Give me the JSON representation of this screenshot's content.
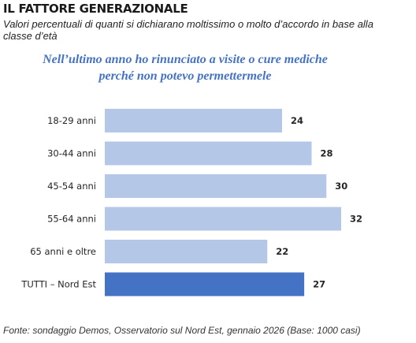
{
  "header": {
    "title": "IL FATTORE GENERAZIONALE",
    "subtitle": "Valori percentuali di quanti si dichiarano moltissimo o molto d’accordo in base alla classe d’età"
  },
  "chart_data": {
    "type": "bar",
    "orientation": "horizontal",
    "title_line1": "Nell’ultimo anno ho rinunciato a visite o cure mediche",
    "title_line2": "perché non potevo permettermele",
    "categories": [
      "18-29 anni",
      "30-44 anni",
      "45-54 anni",
      "55-64 anni",
      "65 anni e oltre",
      "TUTTI – Nord Est"
    ],
    "values": [
      24,
      28,
      30,
      32,
      22,
      27
    ],
    "value_labels": [
      "24",
      "28",
      "30",
      "32",
      "22",
      "27"
    ],
    "colors": [
      "#b4c7e7",
      "#b4c7e7",
      "#b4c7e7",
      "#b4c7e7",
      "#b4c7e7",
      "#4472c4"
    ],
    "xlim": [
      0,
      32
    ],
    "grid": false,
    "legend": "none"
  },
  "footer": {
    "source": "Fonte: sondaggio Demos, Osservatorio sul Nord Est, gennaio 2026 (Base: 1000 casi)"
  }
}
